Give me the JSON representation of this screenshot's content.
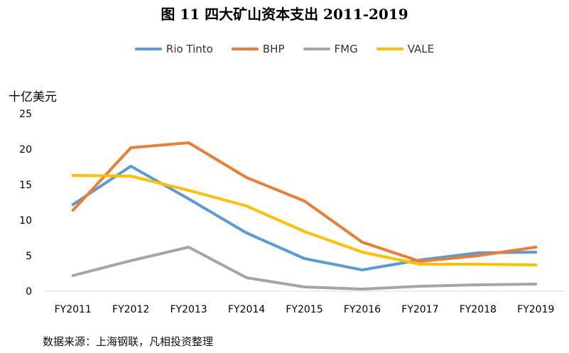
{
  "chart_data": {
    "type": "line",
    "title": "图 11   四大矿山资本支出 2011-2019",
    "ylabel": "十亿美元",
    "xlabel": "",
    "categories": [
      "FY2011",
      "FY2012",
      "FY2013",
      "FY2014",
      "FY2015",
      "FY2016",
      "FY2017",
      "FY2018",
      "FY2019"
    ],
    "yticks": [
      "0",
      "5",
      "10",
      "15",
      "20",
      "25"
    ],
    "ylim": [
      0,
      25
    ],
    "grid": false,
    "legend_position": "top",
    "series": [
      {
        "name": "Rio Tinto",
        "color": "#5b9bd5",
        "values": [
          12.2,
          17.6,
          13.0,
          8.2,
          4.6,
          3.0,
          4.4,
          5.4,
          5.5
        ]
      },
      {
        "name": "BHP",
        "color": "#ed7d31",
        "values": [
          11.4,
          20.2,
          20.9,
          16.0,
          12.7,
          6.9,
          4.2,
          5.0,
          6.2
        ]
      },
      {
        "name": "FMG",
        "color": "#a5a5a5",
        "values": [
          2.2,
          4.3,
          6.2,
          1.9,
          0.6,
          0.3,
          0.7,
          0.9,
          1.0
        ]
      },
      {
        "name": "VALE",
        "color": "#ffc000",
        "values": [
          16.3,
          16.2,
          14.2,
          12.0,
          8.4,
          5.5,
          3.8,
          3.8,
          3.7
        ]
      }
    ],
    "source": "数据来源：上海钢联，凡相投资整理"
  }
}
